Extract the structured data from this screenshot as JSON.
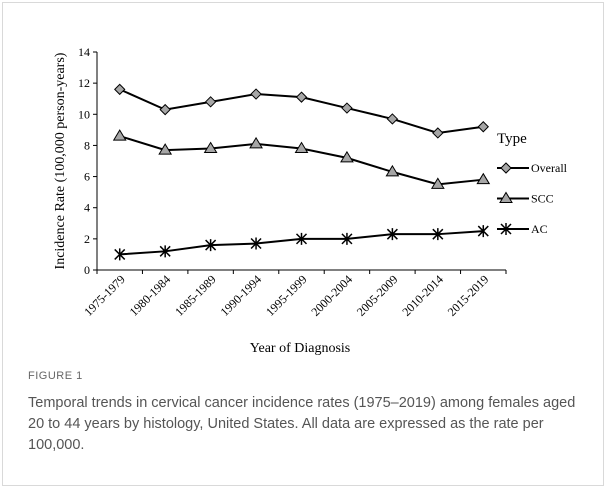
{
  "chart_data": {
    "type": "line",
    "ylabel": "Incidence Rate (100,000 person-years)",
    "xlabel": "Year of Diagnosis",
    "categories": [
      "1975-1979",
      "1980-1984",
      "1985-1989",
      "1990-1994",
      "1995-1999",
      "2000-2004",
      "2005-2009",
      "2010-2014",
      "2015-2019"
    ],
    "series": [
      {
        "name": "Overall",
        "color": "#000000",
        "marker": "diamond",
        "values": [
          11.6,
          10.3,
          10.8,
          11.3,
          11.1,
          10.4,
          9.7,
          8.8,
          9.2
        ]
      },
      {
        "name": "SCC",
        "color": "#000000",
        "marker": "triangle",
        "values": [
          8.6,
          7.7,
          7.8,
          8.1,
          7.8,
          7.2,
          6.3,
          5.5,
          5.8
        ]
      },
      {
        "name": "AC",
        "color": "#000000",
        "marker": "asterisk",
        "values": [
          1.0,
          1.2,
          1.6,
          1.7,
          2.0,
          2.0,
          2.3,
          2.3,
          2.5
        ]
      }
    ],
    "ylim": [
      0,
      14
    ],
    "yticks": [
      0,
      2,
      4,
      6,
      8,
      10,
      12,
      14
    ],
    "grid": false,
    "legend_title": "Type",
    "legend": "right"
  },
  "figure_label": "FIGURE 1",
  "caption": "Temporal trends in cervical cancer incidence rates (1975–2019) among females aged 20 to 44 years by histology, United States. All data are expressed as the rate per 100,000."
}
